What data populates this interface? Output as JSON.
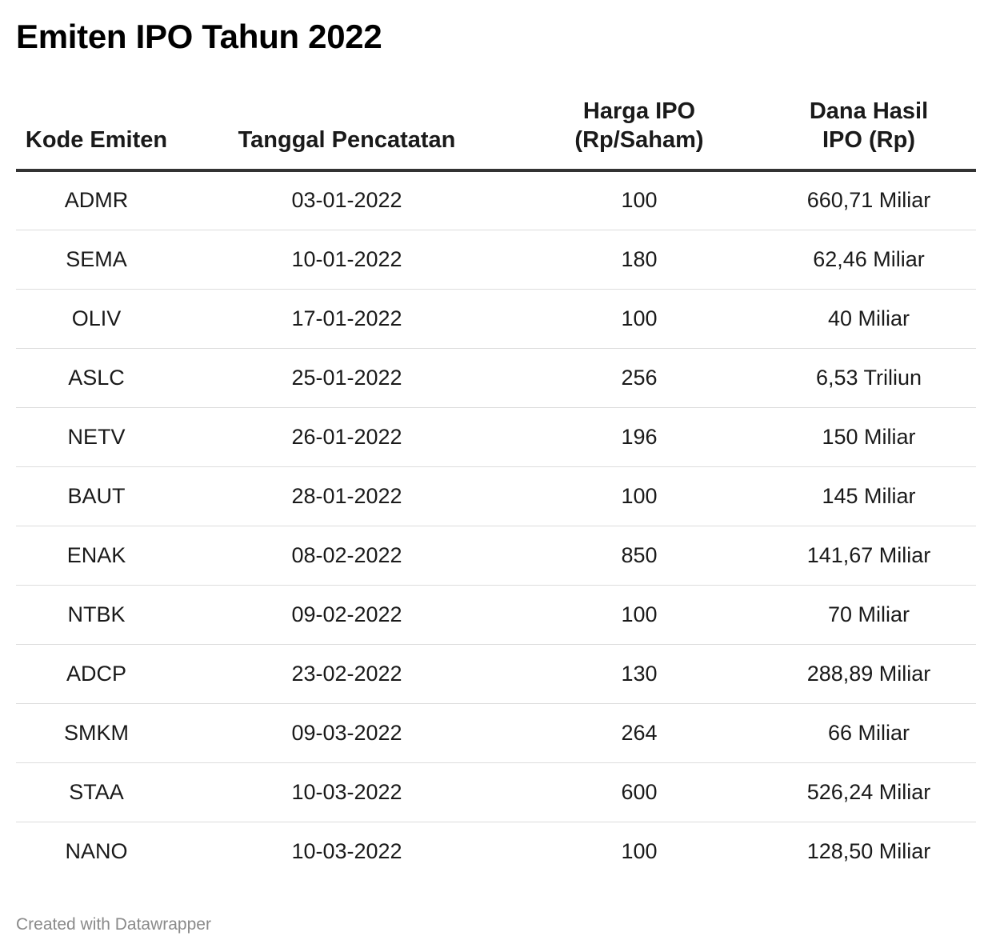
{
  "title": "Emiten IPO Tahun 2022",
  "footer": "Created with Datawrapper",
  "chart_data": {
    "type": "table",
    "title": "Emiten IPO Tahun 2022",
    "columns": [
      "Kode Emiten",
      "Tanggal Pencatatan",
      "Harga IPO (Rp/Saham)",
      "Dana Hasil IPO (Rp)"
    ],
    "header_lines": [
      [
        "Kode Emiten"
      ],
      [
        "Tanggal Pencatatan"
      ],
      [
        "Harga IPO",
        "(Rp/Saham)"
      ],
      [
        "Dana Hasil",
        "IPO (Rp)"
      ]
    ],
    "rows": [
      [
        "ADMR",
        "03-01-2022",
        "100",
        "660,71 Miliar"
      ],
      [
        "SEMA",
        "10-01-2022",
        "180",
        "62,46 Miliar"
      ],
      [
        "OLIV",
        "17-01-2022",
        "100",
        "40 Miliar"
      ],
      [
        "ASLC",
        "25-01-2022",
        "256",
        "6,53 Triliun"
      ],
      [
        "NETV",
        "26-01-2022",
        "196",
        "150 Miliar"
      ],
      [
        "BAUT",
        "28-01-2022",
        "100",
        "145 Miliar"
      ],
      [
        "ENAK",
        "08-02-2022",
        "850",
        "141,67 Miliar"
      ],
      [
        "NTBK",
        "09-02-2022",
        "100",
        "70 Miliar"
      ],
      [
        "ADCP",
        "23-02-2022",
        "130",
        "288,89 Miliar"
      ],
      [
        "SMKM",
        "09-03-2022",
        "264",
        "66 Miliar"
      ],
      [
        "STAA",
        "10-03-2022",
        "600",
        "526,24 Miliar"
      ],
      [
        "NANO",
        "10-03-2022",
        "100",
        "128,50 Miliar"
      ]
    ]
  }
}
